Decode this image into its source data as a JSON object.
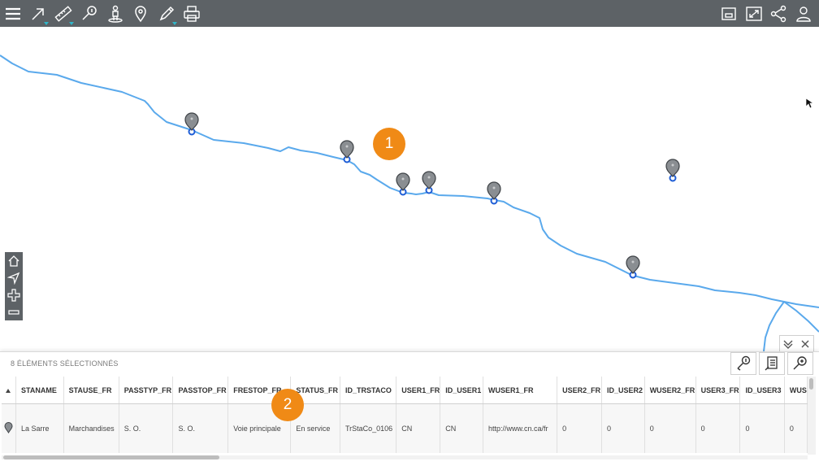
{
  "toolbar": {
    "left_tools": [
      {
        "icon": "menu-icon"
      },
      {
        "icon": "draw-arrow-icon"
      },
      {
        "icon": "measure-ruler-icon"
      },
      {
        "icon": "identify-icon"
      },
      {
        "icon": "person-location-icon"
      },
      {
        "icon": "map-pin-icon"
      },
      {
        "icon": "edit-pencil-icon"
      },
      {
        "icon": "print-icon"
      }
    ],
    "right_tools": [
      {
        "icon": "window-icon"
      },
      {
        "icon": "fullscreen-icon"
      },
      {
        "icon": "share-icon"
      },
      {
        "icon": "user-icon"
      }
    ]
  },
  "map": {
    "line_color": "#5aa9ec",
    "badge_color": "#f08a16",
    "callouts": [
      "1",
      "2"
    ]
  },
  "nav_controls": [
    "home-icon",
    "locate-arrow-icon",
    "zoom-in-icon",
    "zoom-out-icon"
  ],
  "panel": {
    "selection_label": "8 ÉLÉMENTS SÉLECTIONNÉS",
    "tools": [
      "identify-icon",
      "table-export-icon",
      "zoom-to-icon"
    ],
    "columns": [
      "STANAME",
      "STAUSE_FR",
      "PASSTYP_FR",
      "PASSTOP_FR",
      "FRESTOP_FR",
      "STATUS_FR",
      "ID_TRSTACO",
      "USER1_FR",
      "ID_USER1",
      "WUSER1_FR",
      "USER2_FR",
      "ID_USER2",
      "WUSER2_FR",
      "USER3_FR",
      "ID_USER3",
      "WUS"
    ],
    "rows": [
      [
        "La Sarre",
        "Marchandises",
        "S. O.",
        "S. O.",
        "Voie principale",
        "En service",
        "TrStaCo_0106",
        "CN",
        "CN",
        "http://www.cn.ca/fr",
        "0",
        "0",
        "0",
        "0",
        "0",
        "0"
      ]
    ]
  }
}
